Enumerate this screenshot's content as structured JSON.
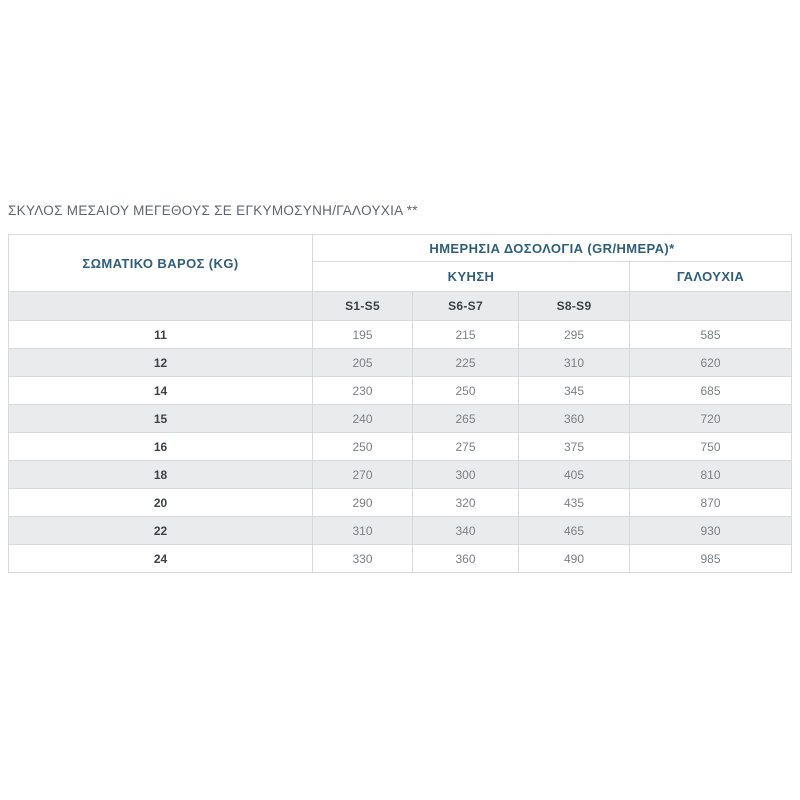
{
  "title": "ΣΚΥΛΟΣ ΜΕΣΑΙΟΥ ΜΕΓΕΘΟΥΣ ΣΕ ΕΓΚΥΜΟΣΥΝΗ/ΓΑΛΟΥΧΙΑ **",
  "table": {
    "weight_header": "ΣΩΜΑΤΙΚΟ ΒΑΡΟΣ (KG)",
    "dosage_header": "ΗΜΕΡΗΣΙΑ ΔΟΣΟΛΟΓΙΑ (GR/ΗΜΕΡΑ)*",
    "gestation_header": "ΚΥΗΣΗ",
    "lactation_header": "ΓΑΛΟΥΧΙΑ",
    "stage_headers": [
      "S1-S5",
      "S6-S7",
      "S8-S9"
    ],
    "rows": [
      {
        "weight": "11",
        "values": [
          "195",
          "215",
          "295",
          "585"
        ]
      },
      {
        "weight": "12",
        "values": [
          "205",
          "225",
          "310",
          "620"
        ]
      },
      {
        "weight": "14",
        "values": [
          "230",
          "250",
          "345",
          "685"
        ]
      },
      {
        "weight": "15",
        "values": [
          "240",
          "265",
          "360",
          "720"
        ]
      },
      {
        "weight": "16",
        "values": [
          "250",
          "275",
          "375",
          "750"
        ]
      },
      {
        "weight": "18",
        "values": [
          "270",
          "300",
          "405",
          "810"
        ]
      },
      {
        "weight": "20",
        "values": [
          "290",
          "320",
          "435",
          "870"
        ]
      },
      {
        "weight": "22",
        "values": [
          "310",
          "340",
          "465",
          "930"
        ]
      },
      {
        "weight": "24",
        "values": [
          "330",
          "360",
          "490",
          "985"
        ]
      }
    ]
  },
  "colors": {
    "header_text": "#2e5e7d",
    "body_text": "#7a8085",
    "weight_text": "#3c4248",
    "row_alt_bg": "#eaebed",
    "stage_row_bg": "#e8eaeb",
    "border": "#d7dadc"
  }
}
